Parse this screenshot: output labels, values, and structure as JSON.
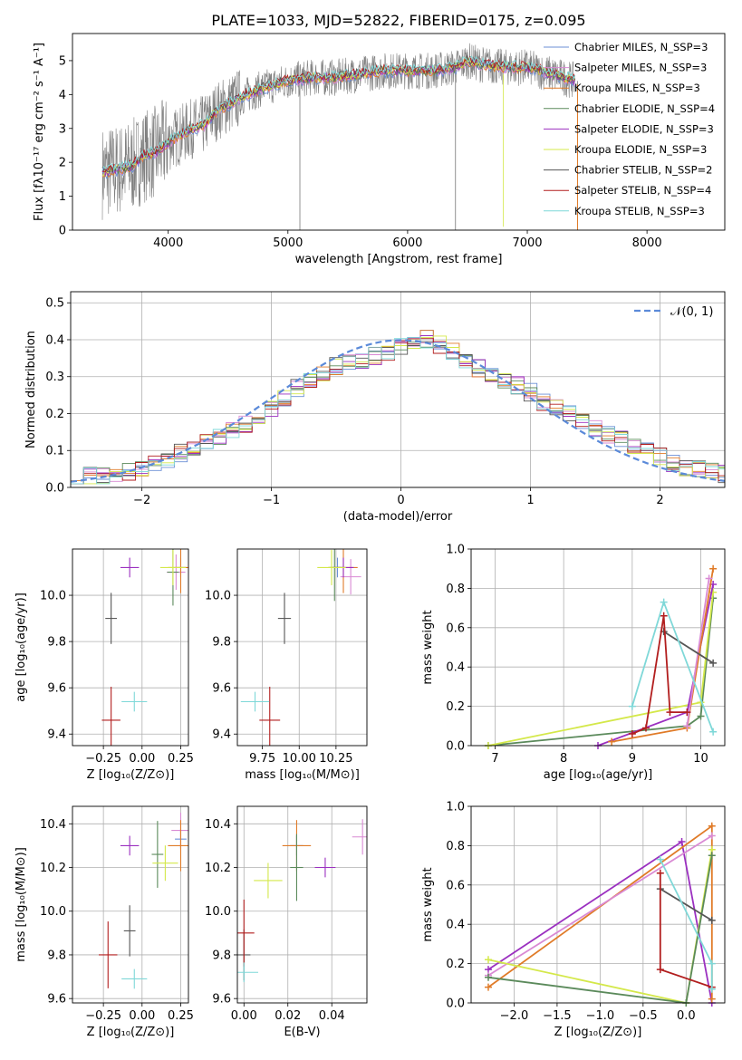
{
  "colors": {
    "Chabrier MILES": "#6b8fd6",
    "Salpeter MILES": "#d98ad4",
    "Kroupa MILES": "#e07b28",
    "Chabrier ELODIE": "#5b8a5b",
    "Salpeter ELODIE": "#9b30c0",
    "Kroupa ELODIE": "#d4e84a",
    "Chabrier STELIB": "#555555",
    "Salpeter STELIB": "#b21e1e",
    "Kroupa STELIB": "#7fd8d8",
    "data": "#808080",
    "normal": "#5b8ad9"
  },
  "chart_data": [
    {
      "type": "line",
      "title": "PLATE=1033, MJD=52822, FIBERID=0175, z=0.095",
      "xlabel": "wavelength [Angstrom, rest frame]",
      "ylabel": "Flux [fλ10⁻¹⁷ erg cm⁻² s⁻¹ A⁻¹]",
      "xlim": [
        3200,
        8650
      ],
      "ylim": [
        0,
        5.8
      ],
      "xticks": [
        "4000",
        "5000",
        "6000",
        "7000",
        "8000"
      ],
      "yticks": [
        "0",
        "1",
        "2",
        "3",
        "4",
        "5"
      ],
      "legend_placement": "right",
      "legend": [
        "Chabrier MILES, N_SSP=3",
        "Salpeter MILES, N_SSP=3",
        "Kroupa MILES, N_SSP=3",
        "Chabrier ELODIE, N_SSP=4",
        "Salpeter ELODIE, N_SSP=3",
        "Kroupa ELODIE, N_SSP=3",
        "Chabrier STELIB, N_SSP=2",
        "Salpeter STELIB, N_SSP=4",
        "Kroupa STELIB, N_SSP=3"
      ],
      "model_continuum": {
        "x": [
          3450,
          3600,
          3700,
          3800,
          3900,
          4000,
          4100,
          4200,
          4300,
          4400,
          4500,
          4600,
          4800,
          5000,
          5200,
          5400,
          5600,
          5800,
          6000,
          6200,
          6400,
          6500,
          6600,
          6800,
          7000,
          7200,
          7400
        ],
        "y": [
          1.7,
          1.8,
          1.9,
          2.2,
          2.3,
          2.6,
          2.8,
          3.0,
          3.1,
          3.5,
          3.7,
          3.9,
          4.2,
          4.4,
          4.5,
          4.5,
          4.6,
          4.7,
          4.7,
          4.7,
          4.8,
          5.0,
          4.9,
          4.8,
          4.8,
          4.6,
          4.4
        ]
      }
    },
    {
      "type": "line",
      "xlabel": "(data-model)/error",
      "ylabel": "Normed distribution",
      "xlim": [
        -2.55,
        2.5
      ],
      "ylim": [
        0,
        0.53
      ],
      "xticks": [
        "−2",
        "−1",
        "0",
        "1",
        "2"
      ],
      "yticks": [
        "0.0",
        "0.1",
        "0.2",
        "0.3",
        "0.4",
        "0.5"
      ],
      "legend": [
        "𝒩(0, 1)"
      ],
      "legend_placement": "top-right",
      "histogram": {
        "x": [
          -2.5,
          -2.3,
          -2.1,
          -1.9,
          -1.7,
          -1.5,
          -1.3,
          -1.1,
          -0.9,
          -0.7,
          -0.5,
          -0.3,
          -0.1,
          0.1,
          0.3,
          0.5,
          0.7,
          0.9,
          1.1,
          1.3,
          1.5,
          1.7,
          1.9,
          2.1,
          2.3,
          2.5
        ],
        "y": [
          0.03,
          0.035,
          0.045,
          0.07,
          0.1,
          0.13,
          0.16,
          0.2,
          0.26,
          0.3,
          0.34,
          0.35,
          0.37,
          0.41,
          0.38,
          0.33,
          0.3,
          0.27,
          0.22,
          0.19,
          0.15,
          0.12,
          0.09,
          0.06,
          0.045,
          0.035
        ]
      }
    },
    {
      "type": "scatter",
      "xlabel": "Z [log₁₀(Z/Z⊙)]",
      "ylabel": "age  [log₁₀(age/yr)]",
      "xlim": [
        -0.45,
        0.3
      ],
      "ylim": [
        9.35,
        10.2
      ],
      "xticks": [
        "−0.25",
        "0.00",
        "0.25"
      ],
      "yticks": [
        "9.4",
        "9.6",
        "9.8",
        "10.0"
      ],
      "points": [
        {
          "name": "Chabrier MILES",
          "x": 0.25,
          "y": 10.12
        },
        {
          "name": "Salpeter MILES",
          "x": 0.22,
          "y": 10.1
        },
        {
          "name": "Kroupa MILES",
          "x": 0.25,
          "y": 10.12
        },
        {
          "name": "Chabrier ELODIE",
          "x": 0.2,
          "y": 10.1
        },
        {
          "name": "Salpeter ELODIE",
          "x": -0.08,
          "y": 10.12
        },
        {
          "name": "Kroupa ELODIE",
          "x": 0.2,
          "y": 10.12
        },
        {
          "name": "Chabrier STELIB",
          "x": -0.2,
          "y": 9.9
        },
        {
          "name": "Salpeter STELIB",
          "x": -0.2,
          "y": 9.46
        },
        {
          "name": "Kroupa STELIB",
          "x": -0.05,
          "y": 9.54
        }
      ]
    },
    {
      "type": "scatter",
      "xlabel": "mass [log₁₀(M/M⊙)]",
      "xlim": [
        9.58,
        10.46
      ],
      "ylim": [
        9.35,
        10.2
      ],
      "xticks": [
        "9.75",
        "10.00",
        "10.25"
      ],
      "yticks": [
        "9.4",
        "9.6",
        "9.8",
        "10.0"
      ],
      "points": [
        {
          "name": "Chabrier MILES",
          "x": 10.26,
          "y": 10.12
        },
        {
          "name": "Salpeter MILES",
          "x": 10.35,
          "y": 10.08
        },
        {
          "name": "Kroupa MILES",
          "x": 10.3,
          "y": 10.12
        },
        {
          "name": "Chabrier ELODIE",
          "x": 10.24,
          "y": 10.12
        },
        {
          "name": "Salpeter ELODIE",
          "x": 10.3,
          "y": 10.12
        },
        {
          "name": "Kroupa ELODIE",
          "x": 10.22,
          "y": 10.12
        },
        {
          "name": "Chabrier STELIB",
          "x": 9.9,
          "y": 9.9
        },
        {
          "name": "Salpeter STELIB",
          "x": 9.8,
          "y": 9.46
        },
        {
          "name": "Kroupa STELIB",
          "x": 9.7,
          "y": 9.54
        }
      ]
    },
    {
      "type": "line",
      "xlabel": "age  [log₁₀(age/yr)]",
      "ylabel": "mass weight",
      "xlim": [
        6.65,
        10.35
      ],
      "ylim": [
        0,
        1
      ],
      "xticks": [
        "7",
        "8",
        "9",
        "10"
      ],
      "yticks": [
        "0.0",
        "0.2",
        "0.4",
        "0.6",
        "0.8",
        "1.0"
      ],
      "series": [
        {
          "name": "Chabrier ELODIE",
          "x": [
            6.9,
            9.8,
            10.0,
            10.18
          ],
          "y": [
            0.0,
            0.1,
            0.15,
            0.75
          ]
        },
        {
          "name": "Kroupa ELODIE",
          "x": [
            6.9,
            10.0,
            10.18
          ],
          "y": [
            0.0,
            0.22,
            0.78
          ]
        },
        {
          "name": "Salpeter ELODIE",
          "x": [
            8.5,
            9.8,
            10.18
          ],
          "y": [
            0.0,
            0.17,
            0.82
          ]
        },
        {
          "name": "Kroupa MILES",
          "x": [
            8.7,
            9.8,
            10.18
          ],
          "y": [
            0.02,
            0.09,
            0.9
          ]
        },
        {
          "name": "Salpeter MILES",
          "x": [
            9.8,
            10.12
          ],
          "y": [
            0.1,
            0.85
          ]
        },
        {
          "name": "Chabrier STELIB",
          "x": [
            9.46,
            10.18
          ],
          "y": [
            0.58,
            0.42
          ]
        },
        {
          "name": "Salpeter STELIB",
          "x": [
            9.0,
            9.2,
            9.46,
            9.55,
            9.8
          ],
          "y": [
            0.06,
            0.09,
            0.66,
            0.17,
            0.17
          ]
        },
        {
          "name": "Kroupa STELIB",
          "x": [
            9.0,
            9.46,
            10.18
          ],
          "y": [
            0.2,
            0.73,
            0.07
          ]
        }
      ]
    },
    {
      "type": "scatter",
      "xlabel": "Z [log₁₀(Z/Z⊙)]",
      "ylabel": "mass [log₁₀(M/M⊙)]",
      "xlim": [
        -0.45,
        0.3
      ],
      "ylim": [
        9.58,
        10.48
      ],
      "xticks": [
        "−0.25",
        "0.00",
        "0.25"
      ],
      "yticks": [
        "9.6",
        "9.8",
        "10.0",
        "10.2",
        "10.4"
      ],
      "points": [
        {
          "name": "Chabrier MILES",
          "x": 0.25,
          "y": 10.33
        },
        {
          "name": "Salpeter MILES",
          "x": 0.25,
          "y": 10.37
        },
        {
          "name": "Kroupa MILES",
          "x": 0.25,
          "y": 10.3
        },
        {
          "name": "Chabrier ELODIE",
          "x": 0.1,
          "y": 10.26
        },
        {
          "name": "Salpeter ELODIE",
          "x": -0.08,
          "y": 10.3
        },
        {
          "name": "Kroupa ELODIE",
          "x": 0.15,
          "y": 10.22
        },
        {
          "name": "Chabrier STELIB",
          "x": -0.08,
          "y": 9.91
        },
        {
          "name": "Salpeter STELIB",
          "x": -0.22,
          "y": 9.8
        },
        {
          "name": "Kroupa STELIB",
          "x": -0.05,
          "y": 9.69
        }
      ]
    },
    {
      "type": "scatter",
      "xlabel": "E(B-V)",
      "xlim": [
        -0.003,
        0.056
      ],
      "ylim": [
        9.58,
        10.48
      ],
      "xticks": [
        "0.00",
        "0.02",
        "0.04"
      ],
      "yticks": [
        "9.6",
        "9.8",
        "10.0",
        "10.2",
        "10.4"
      ],
      "points": [
        {
          "name": "Chabrier MILES",
          "x": 0.024,
          "y": 10.3
        },
        {
          "name": "Salpeter MILES",
          "x": 0.054,
          "y": 10.34
        },
        {
          "name": "Kroupa MILES",
          "x": 0.024,
          "y": 10.3
        },
        {
          "name": "Chabrier ELODIE",
          "x": 0.024,
          "y": 10.2
        },
        {
          "name": "Salpeter ELODIE",
          "x": 0.037,
          "y": 10.2
        },
        {
          "name": "Kroupa ELODIE",
          "x": 0.011,
          "y": 10.14
        },
        {
          "name": "Chabrier STELIB",
          "x": 0.0,
          "y": 9.8
        },
        {
          "name": "Salpeter STELIB",
          "x": 0.0,
          "y": 9.9
        },
        {
          "name": "Kroupa STELIB",
          "x": 0.0,
          "y": 9.72
        }
      ]
    },
    {
      "type": "line",
      "xlabel": "Z [log₁₀(Z/Z⊙)]",
      "ylabel": "mass weight",
      "xlim": [
        -2.5,
        0.45
      ],
      "ylim": [
        0,
        1
      ],
      "xticks": [
        "−2.0",
        "−1.5",
        "−1.0",
        "−0.5",
        "0.0"
      ],
      "yticks": [
        "0.0",
        "0.2",
        "0.4",
        "0.6",
        "0.8",
        "1.0"
      ],
      "series": [
        {
          "name": "Salpeter ELODIE",
          "x": [
            -2.3,
            -0.05,
            0.3
          ],
          "y": [
            0.17,
            0.82,
            0.0
          ]
        },
        {
          "name": "Kroupa MILES",
          "x": [
            -2.3,
            0.3,
            0.3
          ],
          "y": [
            0.08,
            0.9,
            0.02
          ]
        },
        {
          "name": "Salpeter MILES",
          "x": [
            -2.3,
            0.3
          ],
          "y": [
            0.14,
            0.85
          ]
        },
        {
          "name": "Kroupa ELODIE",
          "x": [
            -2.3,
            0.0,
            0.3
          ],
          "y": [
            0.22,
            0.0,
            0.78
          ]
        },
        {
          "name": "Chabrier ELODIE",
          "x": [
            -2.3,
            0.0,
            0.3
          ],
          "y": [
            0.13,
            0.0,
            0.75
          ]
        },
        {
          "name": "Chabrier STELIB",
          "x": [
            -0.3,
            0.3
          ],
          "y": [
            0.58,
            0.42
          ]
        },
        {
          "name": "Salpeter STELIB",
          "x": [
            -0.3,
            -0.3,
            0.3
          ],
          "y": [
            0.66,
            0.17,
            0.08
          ]
        },
        {
          "name": "Kroupa STELIB",
          "x": [
            -0.3,
            0.3,
            0.3
          ],
          "y": [
            0.73,
            0.2,
            0.07
          ]
        }
      ]
    }
  ]
}
